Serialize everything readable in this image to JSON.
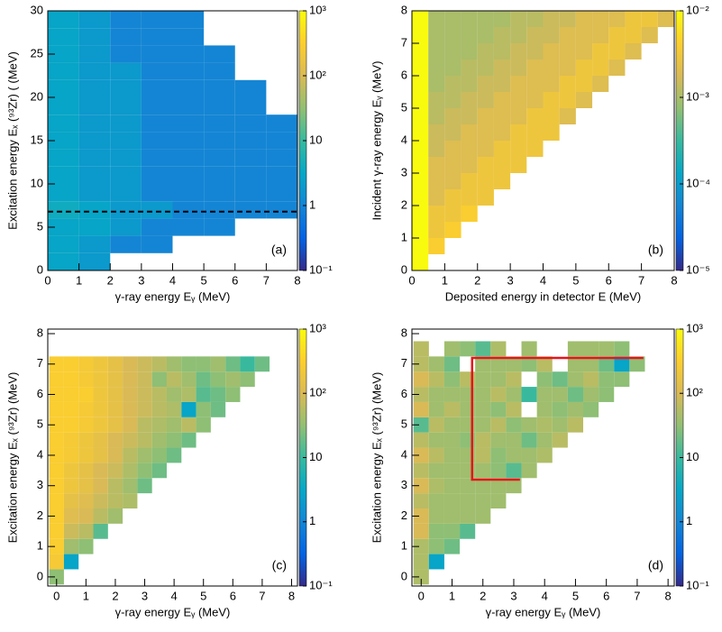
{
  "chart_data": [
    {
      "type": "heatmap",
      "panel_label": "(a)",
      "xlabel": "γ-ray energy Eᵧ (MeV)",
      "ylabel": "Excitation energy Eₓ (⁹³Zr) ( (MeV)",
      "xlim": [
        0,
        8
      ],
      "ylim": [
        0,
        30
      ],
      "xticks": [
        0,
        1,
        2,
        3,
        4,
        5,
        6,
        7,
        8
      ],
      "yticks": [
        0,
        5,
        10,
        15,
        20,
        25,
        30
      ],
      "x_start": 0,
      "y_start": 0,
      "bin_width_x": 1,
      "bin_width_y": 2,
      "values": [
        [
          3,
          2,
          null,
          null,
          null,
          null,
          null,
          null
        ],
        [
          3,
          2,
          1,
          1,
          null,
          null,
          null,
          null
        ],
        [
          3,
          3,
          2,
          1,
          1,
          1,
          null,
          null
        ],
        [
          4,
          3,
          2,
          2,
          1,
          1,
          1,
          1
        ],
        [
          3,
          2,
          2,
          1,
          1,
          1,
          1,
          1
        ],
        [
          3,
          2,
          2,
          1,
          1,
          1,
          1,
          1
        ],
        [
          3,
          2,
          2,
          1,
          1,
          1,
          1,
          1
        ],
        [
          3,
          2,
          2,
          1,
          1,
          1,
          1,
          1
        ],
        [
          3,
          2,
          2,
          1,
          1,
          1,
          1,
          1
        ],
        [
          3,
          2,
          2,
          1,
          1,
          1,
          1,
          null
        ],
        [
          3,
          2,
          2,
          1,
          1,
          1,
          1,
          null
        ],
        [
          3,
          2,
          2,
          1,
          1,
          1,
          null,
          null
        ],
        [
          3,
          2,
          1,
          1,
          1,
          1,
          null,
          null
        ],
        [
          3,
          2,
          1,
          1,
          1,
          null,
          null,
          null
        ],
        [
          3,
          2,
          1,
          1,
          1,
          null,
          null,
          null
        ]
      ],
      "hline": 6.8,
      "log_z": true,
      "zlim": [
        0.1,
        1000
      ],
      "zticks": [
        {
          "value": 0.1,
          "label": "10⁻¹"
        },
        1,
        10,
        {
          "value": 100,
          "label": "10²"
        },
        {
          "value": 1000,
          "label": "10³"
        }
      ],
      "colormap": [
        "#352a87",
        "#0363e1",
        "#1485d4",
        "#06a7c6",
        "#38b99e",
        "#92bf73",
        "#d9ba56",
        "#fcce2e",
        "#f9fb0e"
      ]
    },
    {
      "type": "heatmap",
      "panel_label": "(b)",
      "xlabel": "Deposited energy in detector E (MeV)",
      "ylabel": "Incident γ-ray energy Eᵧ (MeV)",
      "xlim": [
        0,
        8
      ],
      "ylim": [
        0,
        8
      ],
      "xticks": [
        0,
        1,
        2,
        3,
        4,
        5,
        6,
        7,
        8
      ],
      "yticks": [
        0,
        1,
        2,
        3,
        4,
        5,
        6,
        7,
        8
      ],
      "x_start": 0,
      "y_start": 0,
      "bin_width_x": 0.5,
      "bin_width_y": 0.5,
      "values": [
        [
          0.01
        ],
        [
          0.01,
          0.004
        ],
        [
          0.01,
          0.003,
          0.004
        ],
        [
          0.01,
          0.003,
          0.003,
          0.004
        ],
        [
          0.01,
          0.002,
          0.003,
          0.003,
          0.003
        ],
        [
          0.01,
          0.002,
          0.002,
          0.003,
          0.003,
          0.003
        ],
        [
          0.01,
          0.002,
          0.002,
          0.002,
          0.003,
          0.003,
          0.003
        ],
        [
          0.01,
          0.0015,
          0.002,
          0.002,
          0.002,
          0.003,
          0.003,
          0.003
        ],
        [
          0.01,
          0.0015,
          0.0015,
          0.002,
          0.002,
          0.002,
          0.003,
          0.003,
          0.003
        ],
        [
          0.01,
          0.0012,
          0.0015,
          0.0015,
          0.002,
          0.002,
          0.002,
          0.003,
          0.003,
          0.002
        ],
        [
          0.01,
          0.0012,
          0.0012,
          0.0015,
          0.0015,
          0.002,
          0.002,
          0.002,
          0.003,
          0.003,
          0.002
        ],
        [
          0.01,
          0.001,
          0.0012,
          0.0012,
          0.0015,
          0.0015,
          0.002,
          0.002,
          0.002,
          0.003,
          0.003,
          0.002
        ],
        [
          0.01,
          0.001,
          0.001,
          0.0012,
          0.0012,
          0.0015,
          0.0015,
          0.002,
          0.002,
          0.002,
          0.003,
          0.003,
          0.002
        ],
        [
          0.01,
          0.001,
          0.001,
          0.001,
          0.0012,
          0.0012,
          0.0015,
          0.0015,
          0.002,
          0.002,
          0.002,
          0.003,
          0.003,
          0.002
        ],
        [
          0.01,
          0.001,
          0.001,
          0.001,
          0.001,
          0.0012,
          0.0012,
          0.0015,
          0.0015,
          0.002,
          0.002,
          0.002,
          0.003,
          0.003,
          0.002
        ],
        [
          0.01,
          0.001,
          0.001,
          0.001,
          0.001,
          0.001,
          0.0012,
          0.0012,
          0.0015,
          0.0015,
          0.002,
          0.002,
          0.002,
          0.003,
          0.003,
          0.002
        ]
      ],
      "log_z": true,
      "zlim": [
        1e-05,
        0.01
      ],
      "zticks": [
        {
          "value": 1e-05,
          "label": "10⁻⁵"
        },
        {
          "value": 0.0001,
          "label": "10⁻⁴"
        },
        {
          "value": 0.001,
          "label": "10⁻³"
        },
        {
          "value": 0.01,
          "label": "10⁻²"
        }
      ],
      "colormap": [
        "#352a87",
        "#0363e1",
        "#1485d4",
        "#06a7c6",
        "#38b99e",
        "#92bf73",
        "#d9ba56",
        "#fcce2e",
        "#f9fb0e"
      ]
    },
    {
      "type": "heatmap",
      "panel_label": "(c)",
      "xlabel": "γ-ray energy Eᵧ (MeV)",
      "ylabel": "Excitation energy Eₓ (⁹³Zr) (MeV)",
      "xlim": [
        -0.3,
        8.2
      ],
      "ylim": [
        -0.3,
        8.15
      ],
      "xticks": [
        0,
        1,
        2,
        3,
        4,
        5,
        6,
        7,
        8
      ],
      "yticks": [
        0,
        1,
        2,
        3,
        4,
        5,
        6,
        7,
        8
      ],
      "x_start": -0.25,
      "y_start": -0.25,
      "bin_width_x": 0.5,
      "bin_width_y": 0.5,
      "values": [
        [
          30
        ],
        [
          250,
          3
        ],
        [
          300,
          40,
          30
        ],
        [
          300,
          80,
          60,
          15
        ],
        [
          300,
          120,
          100,
          60,
          40
        ],
        [
          300,
          150,
          120,
          80,
          60,
          50
        ],
        [
          300,
          200,
          150,
          100,
          60,
          40,
          20
        ],
        [
          300,
          200,
          150,
          100,
          80,
          50,
          30,
          20
        ],
        [
          300,
          250,
          200,
          150,
          100,
          60,
          40,
          30,
          20
        ],
        [
          300,
          250,
          200,
          150,
          100,
          80,
          60,
          40,
          30,
          20
        ],
        [
          300,
          300,
          250,
          200,
          150,
          100,
          60,
          50,
          40,
          60,
          30
        ],
        [
          300,
          300,
          250,
          200,
          150,
          100,
          80,
          60,
          50,
          3,
          30,
          20
        ],
        [
          300,
          300,
          300,
          200,
          150,
          100,
          80,
          60,
          40,
          50,
          15,
          20,
          30
        ],
        [
          300,
          300,
          250,
          200,
          150,
          100,
          80,
          30,
          60,
          40,
          20,
          30,
          40,
          30
        ],
        [
          300,
          300,
          250,
          200,
          150,
          100,
          80,
          60,
          40,
          30,
          30,
          40,
          20,
          10,
          20
        ]
      ],
      "log_z": true,
      "zlim": [
        0.1,
        1000
      ],
      "zticks": [
        {
          "value": 0.1,
          "label": "10⁻¹"
        },
        1,
        10,
        {
          "value": 100,
          "label": "10²"
        },
        {
          "value": 1000,
          "label": "10³"
        }
      ],
      "colormap": [
        "#352a87",
        "#0363e1",
        "#1485d4",
        "#06a7c6",
        "#38b99e",
        "#92bf73",
        "#d9ba56",
        "#fcce2e",
        "#f9fb0e"
      ]
    },
    {
      "type": "heatmap",
      "panel_label": "(d)",
      "xlabel": "γ-ray energy Eᵧ (MeV)",
      "ylabel": "Excitation energy Eₓ (⁹³Zr) (MeV)",
      "xlim": [
        -0.3,
        8.2
      ],
      "ylim": [
        -0.3,
        8.15
      ],
      "xticks": [
        0,
        1,
        2,
        3,
        4,
        5,
        6,
        7,
        8
      ],
      "yticks": [
        0,
        1,
        2,
        3,
        4,
        5,
        6,
        7,
        8
      ],
      "x_start": -0.25,
      "y_start": -0.25,
      "bin_width_x": 0.5,
      "bin_width_y": 0.5,
      "values": [
        [
          50
        ],
        [
          50,
          3
        ],
        [
          50,
          30,
          20
        ],
        [
          100,
          30,
          30,
          15
        ],
        [
          100,
          40,
          40,
          40,
          40
        ],
        [
          60,
          40,
          40,
          40,
          40,
          40
        ],
        [
          100,
          50,
          40,
          40,
          40,
          40,
          40
        ],
        [
          60,
          40,
          40,
          40,
          40,
          30,
          15,
          40
        ],
        [
          100,
          60,
          40,
          40,
          60,
          30,
          40,
          40,
          50
        ],
        [
          60,
          40,
          40,
          30,
          60,
          40,
          40,
          20,
          40,
          60
        ],
        [
          15,
          60,
          40,
          40,
          40,
          60,
          30,
          40,
          50,
          40,
          60
        ],
        [
          100,
          40,
          60,
          40,
          40,
          30,
          60,
          null,
          40,
          30,
          40,
          30
        ],
        [
          60,
          40,
          40,
          40,
          40,
          60,
          40,
          10,
          40,
          40,
          20,
          40,
          30
        ],
        [
          100,
          60,
          30,
          60,
          40,
          40,
          60,
          null,
          30,
          20,
          40,
          60,
          30,
          30
        ],
        [
          60,
          40,
          20,
          null,
          40,
          40,
          40,
          30,
          60,
          null,
          40,
          40,
          20,
          3,
          30
        ],
        [
          60,
          null,
          40,
          30,
          15,
          50,
          null,
          40,
          null,
          null,
          40,
          40,
          40,
          30
        ]
      ],
      "box_x": [
        3.2,
        1.65,
        1.65,
        7.2
      ],
      "box_y": [
        3.2,
        3.2,
        7.2,
        7.2
      ],
      "box_color": "#e8141c",
      "log_z": true,
      "zlim": [
        0.1,
        1000
      ],
      "zticks": [
        {
          "value": 0.1,
          "label": "10⁻¹"
        },
        1,
        10,
        {
          "value": 100,
          "label": "10²"
        },
        {
          "value": 1000,
          "label": "10³"
        }
      ],
      "colormap": [
        "#352a87",
        "#0363e1",
        "#1485d4",
        "#06a7c6",
        "#38b99e",
        "#92bf73",
        "#d9ba56",
        "#fcce2e",
        "#f9fb0e"
      ]
    }
  ]
}
